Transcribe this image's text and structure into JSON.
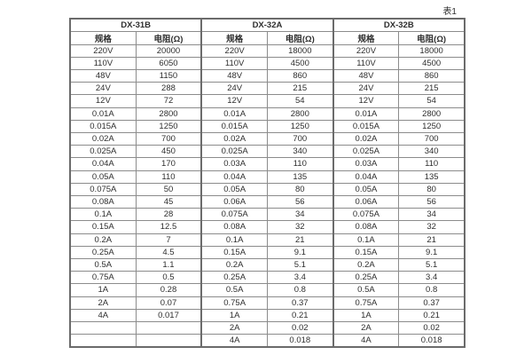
{
  "page": {
    "table_label": "表1"
  },
  "table": {
    "groups": [
      {
        "name": "DX-31B",
        "spec_header": "规格",
        "res_header": "电阻(Ω)",
        "rows": [
          [
            "220V",
            "20000"
          ],
          [
            "110V",
            "6050"
          ],
          [
            "48V",
            "1150"
          ],
          [
            "24V",
            "288"
          ],
          [
            "12V",
            "72"
          ],
          [
            "0.01A",
            "2800"
          ],
          [
            "0.015A",
            "1250"
          ],
          [
            "0.02A",
            "700"
          ],
          [
            "0.025A",
            "450"
          ],
          [
            "0.04A",
            "170"
          ],
          [
            "0.05A",
            "110"
          ],
          [
            "0.075A",
            "50"
          ],
          [
            "0.08A",
            "45"
          ],
          [
            "0.1A",
            "28"
          ],
          [
            "0.15A",
            "12.5"
          ],
          [
            "0.2A",
            "7"
          ],
          [
            "0.25A",
            "4.5"
          ],
          [
            "0.5A",
            "1.1"
          ],
          [
            "0.75A",
            "0.5"
          ],
          [
            "1A",
            "0.28"
          ],
          [
            "2A",
            "0.07"
          ],
          [
            "4A",
            "0.017"
          ],
          [
            "",
            ""
          ],
          [
            "",
            ""
          ]
        ]
      },
      {
        "name": "DX-32A",
        "spec_header": "规格",
        "res_header": "电阻(Ω)",
        "rows": [
          [
            "220V",
            "18000"
          ],
          [
            "110V",
            "4500"
          ],
          [
            "48V",
            "860"
          ],
          [
            "24V",
            "215"
          ],
          [
            "12V",
            "54"
          ],
          [
            "0.01A",
            "2800"
          ],
          [
            "0.015A",
            "1250"
          ],
          [
            "0.02A",
            "700"
          ],
          [
            "0.025A",
            "340"
          ],
          [
            "0.03A",
            "110"
          ],
          [
            "0.04A",
            "135"
          ],
          [
            "0.05A",
            "80"
          ],
          [
            "0.06A",
            "56"
          ],
          [
            "0.075A",
            "34"
          ],
          [
            "0.08A",
            "32"
          ],
          [
            "0.1A",
            "21"
          ],
          [
            "0.15A",
            "9.1"
          ],
          [
            "0.2A",
            "5.1"
          ],
          [
            "0.25A",
            "3.4"
          ],
          [
            "0.5A",
            "0.8"
          ],
          [
            "0.75A",
            "0.37"
          ],
          [
            "1A",
            "0.21"
          ],
          [
            "2A",
            "0.02"
          ],
          [
            "4A",
            "0.018"
          ]
        ]
      },
      {
        "name": "DX-32B",
        "spec_header": "规格",
        "res_header": "电阻(Ω)",
        "rows": [
          [
            "220V",
            "18000"
          ],
          [
            "110V",
            "4500"
          ],
          [
            "48V",
            "860"
          ],
          [
            "24V",
            "215"
          ],
          [
            "12V",
            "54"
          ],
          [
            "0.01A",
            "2800"
          ],
          [
            "0.015A",
            "1250"
          ],
          [
            "0.02A",
            "700"
          ],
          [
            "0.025A",
            "340"
          ],
          [
            "0.03A",
            "110"
          ],
          [
            "0.04A",
            "135"
          ],
          [
            "0.05A",
            "80"
          ],
          [
            "0.06A",
            "56"
          ],
          [
            "0.075A",
            "34"
          ],
          [
            "0.08A",
            "32"
          ],
          [
            "0.1A",
            "21"
          ],
          [
            "0.15A",
            "9.1"
          ],
          [
            "0.2A",
            "5.1"
          ],
          [
            "0.25A",
            "3.4"
          ],
          [
            "0.5A",
            "0.8"
          ],
          [
            "0.75A",
            "0.37"
          ],
          [
            "1A",
            "0.21"
          ],
          [
            "2A",
            "0.02"
          ],
          [
            "4A",
            "0.018"
          ]
        ]
      }
    ]
  }
}
